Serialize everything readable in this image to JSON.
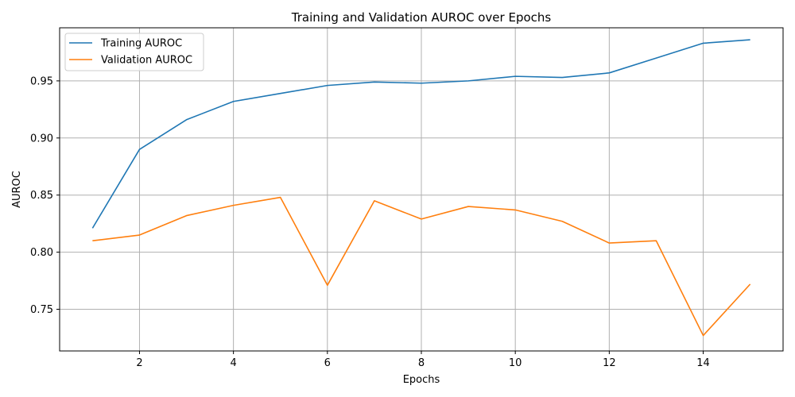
{
  "chart_data": {
    "type": "line",
    "title": "Training and Validation AUROC over Epochs",
    "xlabel": "Epochs",
    "ylabel": "AUROC",
    "xlim": [
      0.3,
      15.7
    ],
    "ylim": [
      0.7135,
      0.9965
    ],
    "xticks": [
      2,
      4,
      6,
      8,
      10,
      12,
      14
    ],
    "xtick_labels": [
      "2",
      "4",
      "6",
      "8",
      "10",
      "12",
      "14"
    ],
    "yticks": [
      0.75,
      0.8,
      0.85,
      0.9,
      0.95
    ],
    "ytick_labels": [
      "0.75",
      "0.80",
      "0.85",
      "0.90",
      "0.95"
    ],
    "grid": true,
    "legend_position": "upper-left",
    "x": [
      1,
      2,
      3,
      4,
      5,
      6,
      7,
      8,
      9,
      10,
      11,
      12,
      13,
      14,
      15
    ],
    "series": [
      {
        "name": "Training AUROC",
        "color": "#1f77b4",
        "values": [
          0.821,
          0.89,
          0.916,
          0.932,
          0.939,
          0.946,
          0.949,
          0.948,
          0.95,
          0.954,
          0.953,
          0.957,
          0.97,
          0.983,
          0.986
        ]
      },
      {
        "name": "Validation AUROC",
        "color": "#ff7f0e",
        "values": [
          0.81,
          0.815,
          0.832,
          0.841,
          0.848,
          0.771,
          0.845,
          0.829,
          0.84,
          0.837,
          0.827,
          0.808,
          0.81,
          0.727,
          0.772
        ]
      }
    ]
  }
}
